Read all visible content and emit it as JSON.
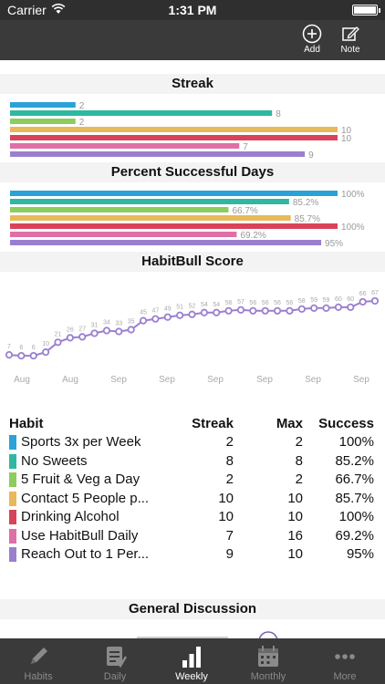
{
  "status_bar": {
    "carrier": "Carrier",
    "time": "1:31 PM"
  },
  "nav": {
    "add_label": "Add",
    "note_label": "Note"
  },
  "colors": {
    "blue": "#2aa2d8",
    "teal": "#2fb8a0",
    "green": "#8dcc5f",
    "yellow": "#e8b95a",
    "red": "#d9435a",
    "pink": "#e06fa8",
    "purple": "#9b7fcf",
    "line": "#9b7fcf"
  },
  "sections": {
    "streak_title": "Streak",
    "percent_title": "Percent Successful Days",
    "score_title": "HabitBull Score",
    "discussion_title": "General Discussion"
  },
  "chart_data": [
    {
      "type": "bar",
      "title": "Streak",
      "categories": [
        "Sports 3x per Week",
        "No Sweets",
        "5 Fruit & Veg a Day",
        "Contact 5 People p...",
        "Drinking Alcohol",
        "Use HabitBull Daily",
        "Reach Out to 1 Per..."
      ],
      "values": [
        2,
        8,
        2,
        10,
        10,
        7,
        9
      ],
      "value_labels": [
        "2",
        "8",
        "2",
        "10",
        "10",
        "7",
        "9"
      ],
      "xlim": [
        0,
        10
      ]
    },
    {
      "type": "bar",
      "title": "Percent Successful Days",
      "categories": [
        "Sports 3x per Week",
        "No Sweets",
        "5 Fruit & Veg a Day",
        "Contact 5 People p...",
        "Drinking Alcohol",
        "Use HabitBull Daily",
        "Reach Out to 1 Per..."
      ],
      "values": [
        100,
        85.2,
        66.7,
        85.7,
        100,
        69.2,
        95
      ],
      "value_labels": [
        "100%",
        "85.2%",
        "66.7%",
        "85.7%",
        "100%",
        "69.2%",
        "95%"
      ],
      "xlim": [
        0,
        100
      ]
    },
    {
      "type": "line",
      "title": "HabitBull Score",
      "values": [
        7,
        6,
        6,
        10,
        21,
        26,
        27,
        31,
        34,
        33,
        35,
        45,
        47,
        49,
        51,
        52,
        54,
        54,
        56,
        57,
        56,
        56,
        56,
        56,
        58,
        59,
        59,
        60,
        60,
        66,
        67
      ],
      "x_tick_labels": [
        "Aug",
        "Aug",
        "Sep",
        "Sep",
        "Sep",
        "Sep",
        "Sep",
        "Sep"
      ],
      "ylim": [
        0,
        70
      ]
    }
  ],
  "table": {
    "headers": {
      "habit": "Habit",
      "streak": "Streak",
      "max": "Max",
      "success": "Success"
    },
    "rows": [
      {
        "name": "Sports 3x per Week",
        "streak": "2",
        "max": "2",
        "success": "100%",
        "color": "#2aa2d8"
      },
      {
        "name": "No Sweets",
        "streak": "8",
        "max": "8",
        "success": "85.2%",
        "color": "#2fb8a0"
      },
      {
        "name": "5 Fruit & Veg a Day",
        "streak": "2",
        "max": "2",
        "success": "66.7%",
        "color": "#8dcc5f"
      },
      {
        "name": "Contact 5 People p...",
        "streak": "10",
        "max": "10",
        "success": "85.7%",
        "color": "#e8b95a"
      },
      {
        "name": "Drinking Alcohol",
        "streak": "10",
        "max": "10",
        "success": "100%",
        "color": "#d9435a"
      },
      {
        "name": "Use HabitBull Daily",
        "streak": "7",
        "max": "16",
        "success": "69.2%",
        "color": "#e06fa8"
      },
      {
        "name": "Reach Out to 1 Per...",
        "streak": "9",
        "max": "10",
        "success": "95%",
        "color": "#9b7fcf"
      }
    ]
  },
  "tabs": [
    {
      "label": "Habits",
      "icon": "pencil-icon"
    },
    {
      "label": "Daily",
      "icon": "checklist-icon"
    },
    {
      "label": "Weekly",
      "icon": "bar-chart-icon",
      "active": true
    },
    {
      "label": "Monthly",
      "icon": "calendar-icon"
    },
    {
      "label": "More",
      "icon": "more-dots-icon"
    }
  ]
}
